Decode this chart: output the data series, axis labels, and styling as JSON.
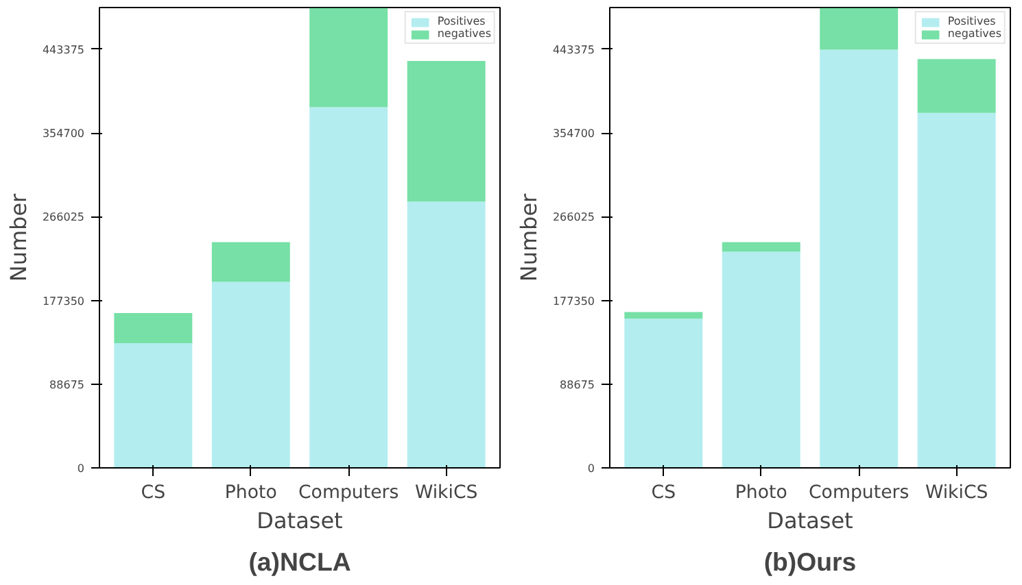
{
  "chart_data": [
    {
      "type": "bar",
      "title": "(a)NCLA",
      "xlabel": "Dataset",
      "ylabel": "Number",
      "categories": [
        "CS",
        "Photo",
        "Computers",
        "WikiCS"
      ],
      "stacked": true,
      "ylim": [
        0,
        487600
      ],
      "yticks": [
        0,
        88675,
        177350,
        266025,
        354700,
        443375
      ],
      "grid": false,
      "legend": "top right",
      "series": [
        {
          "name": "Positives",
          "color": "#b3edf0",
          "values": [
            132000,
            197000,
            382000,
            282000
          ]
        },
        {
          "name": "negatives",
          "color": "#76e0a6",
          "values": [
            32000,
            42000,
            105000,
            149000
          ]
        }
      ]
    },
    {
      "type": "bar",
      "title": "(b)Ours",
      "xlabel": "Dataset",
      "ylabel": "Number",
      "categories": [
        "CS",
        "Photo",
        "Computers",
        "WikiCS"
      ],
      "stacked": true,
      "ylim": [
        0,
        487600
      ],
      "yticks": [
        0,
        88675,
        177350,
        266025,
        354700,
        443375
      ],
      "grid": false,
      "legend": "top right",
      "series": [
        {
          "name": "Positives",
          "color": "#b3edf0",
          "values": [
            158000,
            229000,
            443000,
            376000
          ]
        },
        {
          "name": "negatives",
          "color": "#76e0a6",
          "values": [
            7000,
            10000,
            44000,
            57000
          ]
        }
      ]
    }
  ]
}
